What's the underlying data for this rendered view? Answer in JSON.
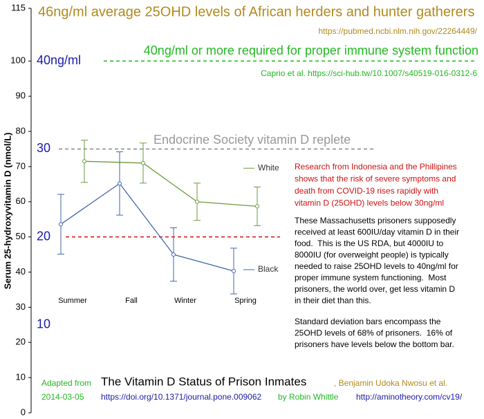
{
  "chart_data": {
    "type": "line",
    "title": "46ng/ml average 25OHD levels of African herders and hunter gatherers",
    "title_source": "https://pubmed.ncbi.nlm.nih.gov/22264449/",
    "y_label": "Serum 25-hydroxyvitamin D (nmol/L)",
    "categories": [
      "Summer",
      "Fall",
      "Winter",
      "Spring"
    ],
    "series": [
      {
        "name": "White",
        "color": "#6a9a3c",
        "values": [
          71.5,
          71,
          60,
          58.7
        ],
        "errors": [
          6,
          5.7,
          5.3,
          5.5
        ]
      },
      {
        "name": "Black",
        "color": "#3f66a8",
        "values": [
          53.6,
          65.2,
          45,
          40.3
        ],
        "errors": [
          8.5,
          9,
          7.6,
          6.5
        ]
      }
    ],
    "ylim": [
      0,
      115
    ],
    "yticks": [
      0,
      10,
      20,
      30,
      40,
      50,
      60,
      70,
      80,
      90,
      100,
      115
    ],
    "reference_lines": [
      {
        "value": 100,
        "color": "#22b822",
        "label": "40ng/ml or more required for proper immune system function",
        "source": "Caprio et al. https://sci-hub.tw/10.1007/s40519-016-0312-6"
      },
      {
        "value": 75,
        "color": "#888888",
        "label": "Endocrine Society vitamin D replete"
      },
      {
        "value": 50,
        "color": "#d01010"
      }
    ],
    "scale_labels": [
      {
        "value": 100,
        "label": "40ng/ml"
      },
      {
        "value": 75,
        "label": "30"
      },
      {
        "value": 50,
        "label": "20"
      },
      {
        "value": 25,
        "label": "10"
      }
    ],
    "red_note": [
      "Research from Indonesia and the Phillipines",
      "shows that the risk of severe symptoms and",
      "death from COVID-19 rises rapidly with",
      "vitamin D (25OHD) levels below 30ng/ml"
    ],
    "note_1": [
      "These Massachusetts prisoners supposedly",
      "received at least 600IU/day vitamin D in their",
      "food.  This is the US RDA, but 4000IU to",
      "8000IU (for overweight people) is typically",
      "needed to raise 25OHD levels to 40ng/ml for",
      "proper immune system functioning.  Most",
      "prisoners, the world over, get less vitamin D",
      "in their diet than this."
    ],
    "note_2": [
      "Standard deviation bars encompass the",
      "25OHD levels of 68% of prisoners.  16% of",
      "prisoners have levels below the bottom bar."
    ],
    "footer": {
      "adapted": "Adapted from",
      "paper": "The Vitamin D Status of Prison Inmates",
      "authors": ", Benjamin Udoka Nwosu et al.",
      "date": "2014-03-05",
      "doi": "https://doi.org/10.1371/journal.pone.009062",
      "by": "by Robin Whittle",
      "site": "http://aminotheory.com/cv19/"
    }
  }
}
